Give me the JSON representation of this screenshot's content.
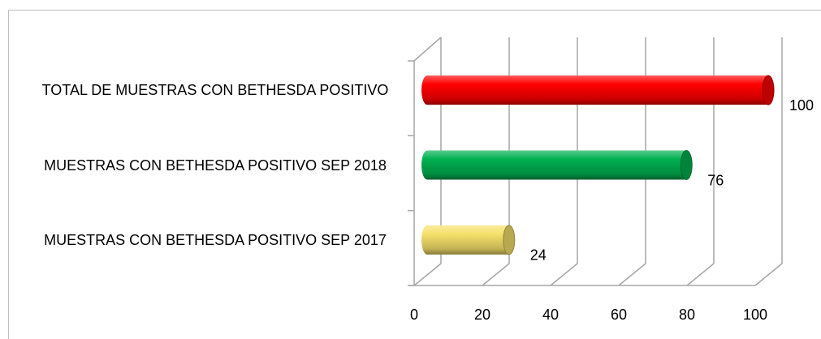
{
  "chart_data": {
    "type": "bar",
    "orientation": "horizontal",
    "style": "3d-cylinder",
    "categories": [
      "MUESTRAS CON BETHESDA POSITIVO SEP 2017",
      "MUESTRAS CON BETHESDA POSITIVO SEP 2018",
      "TOTAL DE MUESTRAS CON BETHESDA POSITIVO"
    ],
    "values": [
      24,
      76,
      100
    ],
    "colors": [
      "#f5e06a",
      "#00b050",
      "#ff0000"
    ],
    "xlim": [
      0,
      100
    ],
    "xticks": [
      0,
      20,
      40,
      60,
      80,
      100
    ],
    "grid": true
  }
}
